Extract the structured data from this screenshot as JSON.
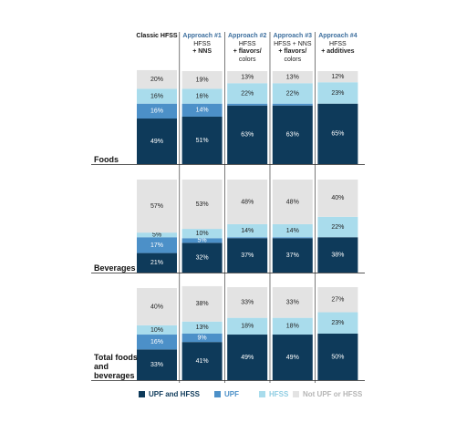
{
  "chart_data": {
    "type": "stacked_bar",
    "ylim": [
      0,
      100
    ],
    "legend": "bottom",
    "categories": [
      "Classic HFSS",
      "Approach #1",
      "Approach #2",
      "Approach #3",
      "Approach #4"
    ],
    "category_notes": [
      [],
      [
        "HFSS",
        "+ NNS"
      ],
      [
        "HFSS",
        "+ flavors/",
        "colors"
      ],
      [
        "HFSS + NNS",
        "+ flavors/",
        "colors"
      ],
      [
        "HFSS",
        "+ additives"
      ]
    ],
    "series": [
      {
        "name": "UPF and HFSS",
        "color": "#0e3a5a"
      },
      {
        "name": "UPF",
        "color": "#4c90c8"
      },
      {
        "name": "HFSS",
        "color": "#a9dcec"
      },
      {
        "name": "Not UPF or HFSS",
        "color": "#e3e3e3"
      }
    ],
    "panels": [
      {
        "label": "Foods",
        "values": [
          [
            49,
            51,
            63,
            63,
            65
          ],
          [
            16,
            14,
            2,
            2,
            0
          ],
          [
            16,
            16,
            22,
            22,
            23
          ],
          [
            20,
            19,
            13,
            13,
            12
          ]
        ],
        "value_labels": [
          [
            "49%",
            "51%",
            "63%",
            "63%",
            "65%"
          ],
          [
            "16%",
            "14%",
            null,
            null,
            null
          ],
          [
            "16%",
            "16%",
            "22%",
            "22%",
            "23%"
          ],
          [
            "20%",
            "19%",
            "13%",
            "13%",
            "12%"
          ]
        ]
      },
      {
        "label": "Beverages",
        "values": [
          [
            21,
            32,
            37,
            37,
            38
          ],
          [
            17,
            5,
            1,
            1,
            0
          ],
          [
            5,
            10,
            14,
            14,
            22
          ],
          [
            57,
            53,
            48,
            48,
            40
          ]
        ],
        "value_labels": [
          [
            "21%",
            "32%",
            "37%",
            "37%",
            "38%"
          ],
          [
            "17%",
            "5%",
            null,
            null,
            null
          ],
          [
            "5%",
            "10%",
            "14%",
            "14%",
            "22%"
          ],
          [
            "57%",
            "53%",
            "48%",
            "48%",
            "40%"
          ]
        ]
      },
      {
        "label": "Total foods and beverages",
        "values": [
          [
            33,
            41,
            49,
            49,
            50
          ],
          [
            16,
            9,
            0,
            0,
            0
          ],
          [
            10,
            13,
            18,
            18,
            23
          ],
          [
            40,
            38,
            33,
            33,
            27
          ]
        ],
        "value_labels": [
          [
            "33%",
            "41%",
            "49%",
            "49%",
            "50%"
          ],
          [
            "16%",
            "9%",
            null,
            null,
            null
          ],
          [
            "10%",
            "13%",
            "18%",
            "18%",
            "23%"
          ],
          [
            "40%",
            "38%",
            "33%",
            "33%",
            "27%"
          ]
        ]
      }
    ]
  }
}
